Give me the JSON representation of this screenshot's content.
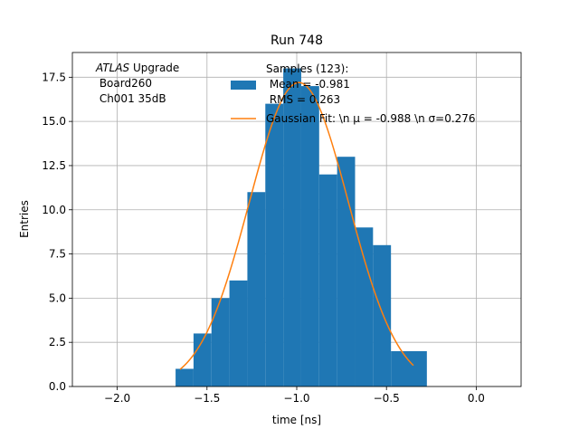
{
  "chart_data": {
    "type": "bar",
    "title": "Run 748",
    "xlabel": "time [ns]",
    "ylabel": "Entries",
    "xlim": [
      -2.25,
      0.25
    ],
    "ylim": [
      0,
      18.9
    ],
    "grid": true,
    "x_ticks": [
      -2.0,
      -1.5,
      -1.0,
      -0.5,
      0.0
    ],
    "x_tick_labels": [
      "−2.0",
      "−1.5",
      "−1.0",
      "−0.5",
      "0.0"
    ],
    "y_ticks": [
      0,
      2.5,
      5,
      7.5,
      10,
      12.5,
      15,
      17.5
    ],
    "y_tick_labels": [
      "0.0",
      "2.5",
      "5.0",
      "7.5",
      "10.0",
      "12.5",
      "15.0",
      "17.5"
    ],
    "annotation": {
      "italic": "ATLAS",
      "rest": " Upgrade",
      "line2": " Board260",
      "line3": " Ch001 35dB"
    },
    "histogram": {
      "color": "#1f77b4",
      "bin_edges": [
        -1.675,
        -1.575,
        -1.475,
        -1.375,
        -1.275,
        -1.175,
        -1.075,
        -0.975,
        -0.875,
        -0.775,
        -0.675,
        -0.575,
        -0.475,
        -0.375,
        -0.275
      ],
      "counts": [
        1,
        3,
        5,
        6,
        11,
        16,
        18,
        17,
        12,
        13,
        9,
        8,
        2,
        2
      ]
    },
    "fit": {
      "color": "#ff7f0e",
      "mu": -0.988,
      "sigma": 0.276,
      "amplitude": 17.2,
      "x_range": [
        -1.65,
        -0.35
      ]
    },
    "legend": {
      "position": "top-right",
      "entries": [
        {
          "label_lines": [
            "Samples (123):",
            " Mean = -0.981",
            " RMS = 0.263"
          ],
          "kind": "patch",
          "color": "#1f77b4"
        },
        {
          "label_lines": [
            "Gaussian Fit: \\n μ = -0.988 \\n σ=0.276"
          ],
          "kind": "line",
          "color": "#ff7f0e"
        }
      ]
    }
  }
}
